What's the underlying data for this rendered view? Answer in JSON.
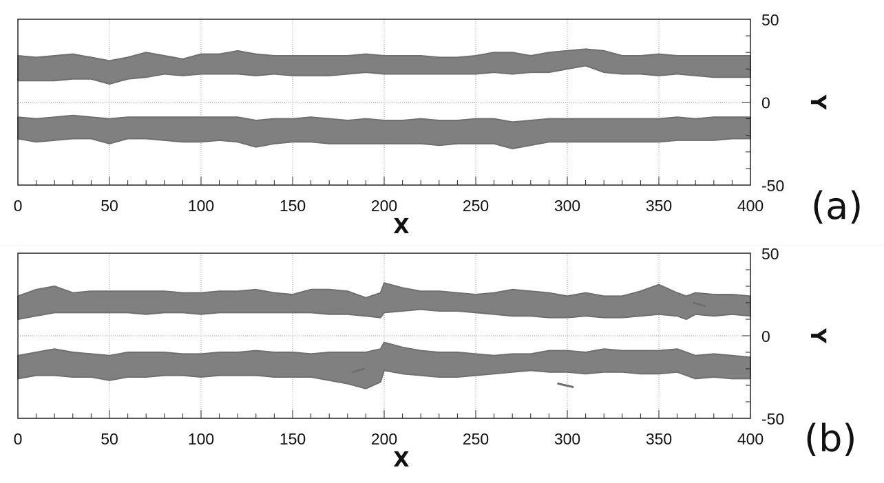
{
  "chart_data": [
    {
      "type": "area",
      "panel_label": "(a)",
      "xlabel": "X",
      "ylabel": "Y",
      "xlim": [
        0,
        400
      ],
      "ylim": [
        -50,
        50
      ],
      "x_ticks": [
        0,
        50,
        100,
        150,
        200,
        250,
        300,
        350,
        400
      ],
      "y_ticks": [
        50,
        0,
        -50
      ],
      "x_ticks_labels": [
        "0",
        "50",
        "100",
        "150",
        "200",
        "250",
        "300",
        "350",
        "400"
      ],
      "y_ticks_labels": [
        "50",
        "0",
        "-50"
      ],
      "grid": true,
      "series": [
        {
          "x": [
            0,
            10,
            20,
            30,
            40,
            50,
            60,
            70,
            80,
            90,
            100,
            110,
            120,
            130,
            140,
            150,
            160,
            170,
            180,
            190,
            200,
            210,
            220,
            230,
            240,
            250,
            260,
            270,
            280,
            290,
            300,
            310,
            320,
            330,
            340,
            350,
            360,
            370,
            380,
            390,
            400
          ],
          "upper": [
            28,
            27,
            28,
            29,
            27,
            25,
            27,
            30,
            28,
            26,
            29,
            29,
            31,
            29,
            28,
            28,
            28,
            28,
            28,
            29,
            28,
            28,
            28,
            27,
            27,
            28,
            30,
            30,
            28,
            30,
            31,
            32,
            31,
            28,
            28,
            29,
            28,
            28,
            28,
            28,
            28
          ],
          "lower": [
            13,
            13,
            13,
            14,
            14,
            11,
            14,
            15,
            17,
            16,
            17,
            17,
            17,
            16,
            17,
            16,
            16,
            16,
            17,
            18,
            17,
            17,
            17,
            17,
            17,
            17,
            18,
            17,
            18,
            18,
            20,
            22,
            18,
            17,
            17,
            16,
            17,
            16,
            15,
            15,
            15
          ]
        },
        {
          "x": [
            0,
            10,
            20,
            30,
            40,
            50,
            60,
            70,
            80,
            90,
            100,
            110,
            120,
            130,
            140,
            150,
            160,
            170,
            180,
            190,
            200,
            210,
            220,
            230,
            240,
            250,
            260,
            270,
            280,
            290,
            300,
            310,
            320,
            330,
            340,
            350,
            360,
            370,
            380,
            390,
            400
          ],
          "upper": [
            -9,
            -10,
            -9,
            -8,
            -9,
            -10,
            -9,
            -9,
            -9,
            -9,
            -9,
            -9,
            -9,
            -11,
            -10,
            -10,
            -9,
            -10,
            -11,
            -10,
            -11,
            -11,
            -10,
            -11,
            -11,
            -10,
            -10,
            -12,
            -11,
            -10,
            -10,
            -10,
            -10,
            -10,
            -10,
            -10,
            -9,
            -10,
            -9,
            -9,
            -9
          ],
          "lower": [
            -22,
            -24,
            -23,
            -22,
            -22,
            -25,
            -22,
            -22,
            -23,
            -24,
            -24,
            -23,
            -24,
            -27,
            -25,
            -24,
            -24,
            -25,
            -25,
            -25,
            -25,
            -25,
            -25,
            -26,
            -25,
            -25,
            -25,
            -28,
            -26,
            -24,
            -24,
            -24,
            -24,
            -24,
            -24,
            -24,
            -23,
            -23,
            -23,
            -22,
            -22
          ]
        }
      ]
    },
    {
      "type": "area",
      "panel_label": "(b)",
      "xlabel": "X",
      "ylabel": "Y",
      "xlim": [
        0,
        400
      ],
      "ylim": [
        -50,
        50
      ],
      "x_ticks": [
        0,
        50,
        100,
        150,
        200,
        250,
        300,
        350,
        400
      ],
      "y_ticks": [
        50,
        0,
        -50
      ],
      "x_ticks_labels": [
        "0",
        "50",
        "100",
        "150",
        "200",
        "250",
        "300",
        "350",
        "400"
      ],
      "y_ticks_labels": [
        "50",
        "0",
        "-50"
      ],
      "grid": true,
      "series": [
        {
          "x": [
            0,
            10,
            20,
            30,
            40,
            50,
            60,
            70,
            80,
            90,
            100,
            110,
            120,
            130,
            140,
            150,
            160,
            170,
            180,
            190,
            198,
            200,
            210,
            220,
            230,
            240,
            250,
            260,
            270,
            280,
            290,
            300,
            310,
            320,
            330,
            340,
            350,
            360,
            365,
            370,
            380,
            390,
            400
          ],
          "upper": [
            24,
            28,
            30,
            26,
            27,
            27,
            27,
            27,
            27,
            26,
            26,
            27,
            27,
            28,
            26,
            25,
            28,
            28,
            27,
            23,
            26,
            32,
            29,
            27,
            27,
            26,
            25,
            26,
            28,
            27,
            26,
            24,
            26,
            24,
            24,
            27,
            31,
            26,
            24,
            26,
            25,
            25,
            24
          ],
          "lower": [
            10,
            12,
            14,
            14,
            14,
            14,
            14,
            13,
            14,
            14,
            13,
            14,
            14,
            14,
            14,
            14,
            14,
            13,
            13,
            12,
            11,
            14,
            15,
            16,
            15,
            15,
            14,
            13,
            12,
            12,
            11,
            11,
            12,
            11,
            11,
            12,
            13,
            12,
            10,
            13,
            12,
            13,
            12
          ]
        },
        {
          "x": [
            0,
            10,
            20,
            30,
            40,
            50,
            60,
            70,
            80,
            90,
            100,
            110,
            120,
            130,
            140,
            150,
            160,
            170,
            180,
            190,
            198,
            200,
            210,
            220,
            230,
            240,
            250,
            260,
            270,
            280,
            290,
            300,
            310,
            320,
            330,
            340,
            350,
            360,
            365,
            370,
            380,
            390,
            400
          ],
          "upper": [
            -12,
            -10,
            -8,
            -10,
            -11,
            -12,
            -10,
            -10,
            -10,
            -11,
            -11,
            -10,
            -10,
            -9,
            -10,
            -10,
            -11,
            -10,
            -10,
            -10,
            -8,
            -4,
            -7,
            -9,
            -10,
            -10,
            -11,
            -12,
            -11,
            -11,
            -9,
            -9,
            -10,
            -8,
            -9,
            -9,
            -9,
            -8,
            -10,
            -12,
            -11,
            -12,
            -13
          ],
          "lower": [
            -26,
            -24,
            -24,
            -25,
            -25,
            -27,
            -25,
            -25,
            -24,
            -24,
            -25,
            -24,
            -24,
            -24,
            -25,
            -25,
            -25,
            -27,
            -29,
            -32,
            -28,
            -21,
            -23,
            -24,
            -25,
            -25,
            -24,
            -23,
            -22,
            -21,
            -22,
            -22,
            -23,
            -22,
            -22,
            -23,
            -23,
            -22,
            -24,
            -26,
            -25,
            -26,
            -26
          ]
        }
      ],
      "fragments": [
        {
          "x1": 183,
          "y1": -22,
          "x2": 189,
          "y2": -20
        },
        {
          "x1": 295,
          "y1": -29,
          "x2": 303,
          "y2": -31
        },
        {
          "x1": 369,
          "y1": 20,
          "x2": 375,
          "y2": 18
        }
      ]
    }
  ],
  "colors": {
    "band": "#808080",
    "band_edge": "#6f6f6f",
    "grid": "#9a9a9a",
    "frame": "#222222"
  }
}
